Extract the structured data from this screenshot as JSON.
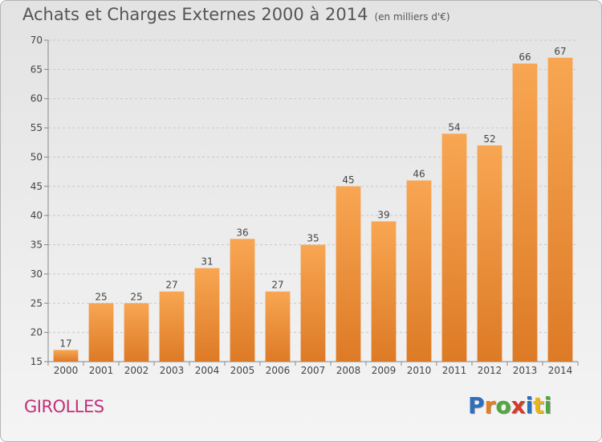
{
  "header": {
    "title": "Achats et Charges Externes 2000 à 2014",
    "subtitle": "(en milliers d'€)"
  },
  "footer": {
    "place": "GIROLLES",
    "logo_letters": [
      {
        "ch": "P",
        "color": "#2c6fbd"
      },
      {
        "ch": "r",
        "color": "#e57e1f"
      },
      {
        "ch": "o",
        "color": "#4fa83c"
      },
      {
        "ch": "x",
        "color": "#d53a2a"
      },
      {
        "ch": "i",
        "color": "#2c6fbd"
      },
      {
        "ch": "t",
        "color": "#e8b51b"
      },
      {
        "ch": "i",
        "color": "#4fa83c"
      }
    ]
  },
  "colors": {
    "bar_light": "#f8a652",
    "bar_dark": "#dd7a26",
    "grid": "#c8c8c8",
    "axis": "#888888"
  },
  "chart_data": {
    "type": "bar",
    "categories": [
      "2000",
      "2001",
      "2002",
      "2003",
      "2004",
      "2005",
      "2006",
      "2007",
      "2008",
      "2009",
      "2010",
      "2011",
      "2012",
      "2013",
      "2014"
    ],
    "values": [
      17,
      25,
      25,
      27,
      31,
      36,
      27,
      35,
      45,
      39,
      46,
      54,
      52,
      66,
      67
    ],
    "ylim": [
      15,
      70
    ],
    "yticks": [
      15,
      20,
      25,
      30,
      35,
      40,
      45,
      50,
      55,
      60,
      65,
      70
    ],
    "grid": "horizontal dashed",
    "data_labels": true
  }
}
